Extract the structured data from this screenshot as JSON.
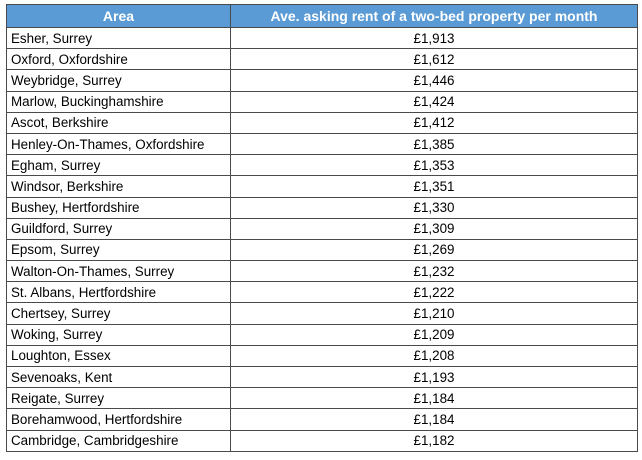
{
  "table": {
    "headers": {
      "area": "Area",
      "rent": "Ave. asking rent of a two-bed property per month"
    },
    "rows": [
      {
        "area": "Esher, Surrey",
        "rent": "£1,913"
      },
      {
        "area": "Oxford, Oxfordshire",
        "rent": "£1,612"
      },
      {
        "area": "Weybridge, Surrey",
        "rent": "£1,446"
      },
      {
        "area": "Marlow, Buckinghamshire",
        "rent": "£1,424"
      },
      {
        "area": "Ascot, Berkshire",
        "rent": "£1,412"
      },
      {
        "area": "Henley-On-Thames, Oxfordshire",
        "rent": "£1,385"
      },
      {
        "area": "Egham, Surrey",
        "rent": "£1,353"
      },
      {
        "area": "Windsor, Berkshire",
        "rent": "£1,351"
      },
      {
        "area": "Bushey, Hertfordshire",
        "rent": "£1,330"
      },
      {
        "area": "Guildford, Surrey",
        "rent": "£1,309"
      },
      {
        "area": "Epsom, Surrey",
        "rent": "£1,269"
      },
      {
        "area": "Walton-On-Thames, Surrey",
        "rent": "£1,232"
      },
      {
        "area": "St. Albans, Hertfordshire",
        "rent": "£1,222"
      },
      {
        "area": "Chertsey, Surrey",
        "rent": "£1,210"
      },
      {
        "area": "Woking, Surrey",
        "rent": "£1,209"
      },
      {
        "area": "Loughton, Essex",
        "rent": "£1,208"
      },
      {
        "area": "Sevenoaks, Kent",
        "rent": "£1,193"
      },
      {
        "area": "Reigate, Surrey",
        "rent": "£1,184"
      },
      {
        "area": "Borehamwood, Hertfordshire",
        "rent": "£1,184"
      },
      {
        "area": "Cambridge, Cambridgeshire",
        "rent": "£1,182"
      }
    ]
  },
  "colors": {
    "header_bg": "#5b9bd5",
    "header_text": "#ffffff",
    "border": "#4a4a4a"
  }
}
